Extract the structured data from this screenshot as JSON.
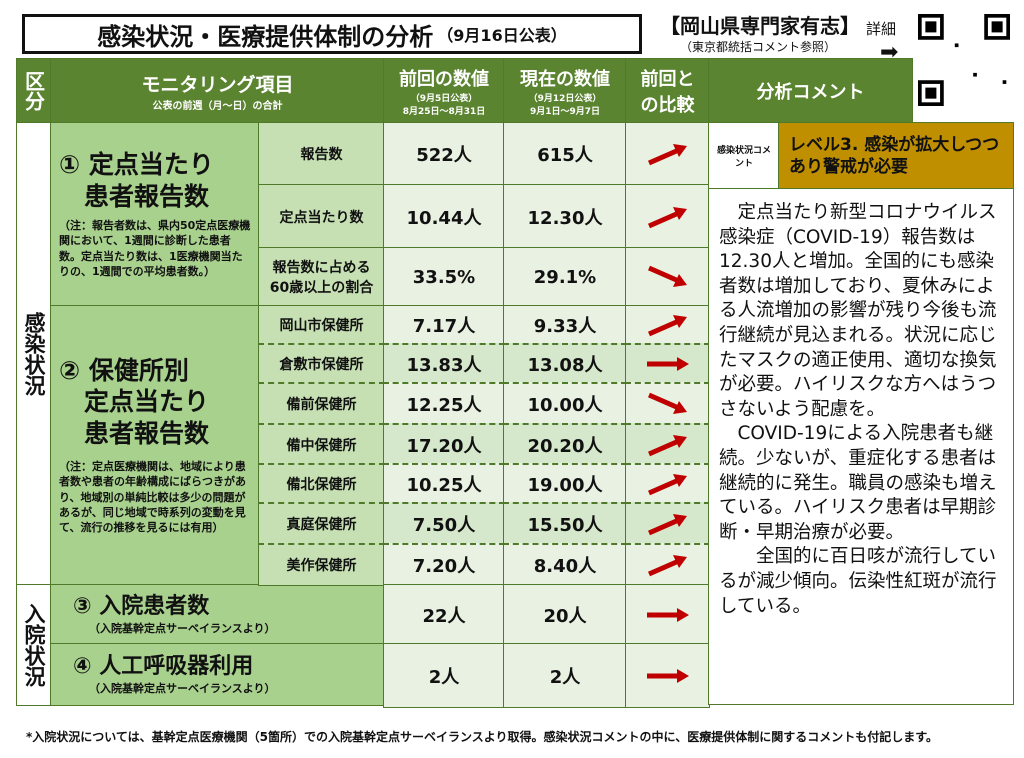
{
  "header": {
    "title": "感染状況・医療提供体制の分析",
    "date": "（9月16日公表）",
    "source": "【岡山県専門家有志】",
    "source_note": "（東京都統括コメント参照）",
    "detail": "詳細",
    "arrow": "➡"
  },
  "columns": {
    "category": "区分",
    "item": "モニタリング項目",
    "item_note": "公表の前週（月～日）の合計",
    "prev": "前回の数値",
    "prev_note1": "（9月5日公表）",
    "prev_note2": "8月25日～8月31日",
    "curr": "現在の数値",
    "curr_note1": "（9月12日公表）",
    "curr_note2": "9月1日～9月7日",
    "compare": "前回との比較",
    "comment": "分析コメント"
  },
  "sections": {
    "infection": "感染状況",
    "hospital": "入院状況"
  },
  "groups": {
    "g1_title": "① 定点当たり\n　患者報告数",
    "g1_note": "（注：報告者数は、県内50定点医療機関において、1週間に診断した患者数。定点当たり数は、1医療機関当たりの、1週間での平均患者数。）",
    "g2_title": "② 保健所別\n　定点当たり\n　患者報告数",
    "g2_note": "（注：定点医療機関は、地域により患者数や患者の年齢構成にばらつきがあり、地域別の単純比較は多少の問題があるが、同じ地域で時系列の変動を見て、流行の推移を見るには有用）",
    "g3_title": "③ 入院患者数",
    "g3_note": "（入院基幹定点サーベイランスより）",
    "g4_title": "④ 人工呼吸器利用",
    "g4_note": "（入院基幹定点サーベイランスより）"
  },
  "rows": [
    {
      "label": "報告数",
      "prev": "522人",
      "curr": "615人",
      "trend": "up"
    },
    {
      "label": "定点当たり数",
      "prev": "10.44人",
      "curr": "12.30人",
      "trend": "up"
    },
    {
      "label": "報告数に占める60歳以上の割合",
      "prev": "33.5%",
      "curr": "29.1%",
      "trend": "down"
    },
    {
      "label": "岡山市保健所",
      "prev": "7.17人",
      "curr": "9.33人",
      "trend": "up"
    },
    {
      "label": "倉敷市保健所",
      "prev": "13.83人",
      "curr": "13.08人",
      "trend": "flat"
    },
    {
      "label": "備前保健所",
      "prev": "12.25人",
      "curr": "10.00人",
      "trend": "down"
    },
    {
      "label": "備中保健所",
      "prev": "17.20人",
      "curr": "20.20人",
      "trend": "up"
    },
    {
      "label": "備北保健所",
      "prev": "10.25人",
      "curr": "19.00人",
      "trend": "up"
    },
    {
      "label": "真庭保健所",
      "prev": "7.50人",
      "curr": "15.50人",
      "trend": "up"
    },
    {
      "label": "美作保健所",
      "prev": "7.20人",
      "curr": "8.40人",
      "trend": "up"
    },
    {
      "label": "",
      "prev": "22人",
      "curr": "20人",
      "trend": "flat"
    },
    {
      "label": "",
      "prev": "2人",
      "curr": "2人",
      "trend": "flat"
    }
  ],
  "comment": {
    "label": "感染状況コメント",
    "level": "レベル3. 感染が拡大しつつあり警戒が必要",
    "p1": "　定点当たり新型コロナウイルス感染症（COVID-19）報告数は12.30人と増加。全国的にも感染者数は増加しており、夏休みによる人流増加の影響が残り今後も流行継続が見込まれる。状況に応じたマスクの適正使用、適切な換気が必要。ハイリスクな方へはうつさないよう配慮を。",
    "p2": "　COVID-19による入院患者も継続。少ないが、重症化する患者は継続的に発生。職員の感染も増えている。ハイリスク患者は早期診断・早期治療が必要。",
    "p3": "　　全国的に百日咳が流行しているが減少傾向。伝染性紅斑が流行している。"
  },
  "footnote": "*入院状況については、基幹定点医療機関（5箇所）での入院基幹定点サーベイランスより取得。感染状況コメントの中に、医療提供体制に関するコメントも付記します。",
  "colors": {
    "header": "#5b8431",
    "item": "#a9d18e",
    "level": "#bf8f00",
    "arrow": "#c00000"
  }
}
